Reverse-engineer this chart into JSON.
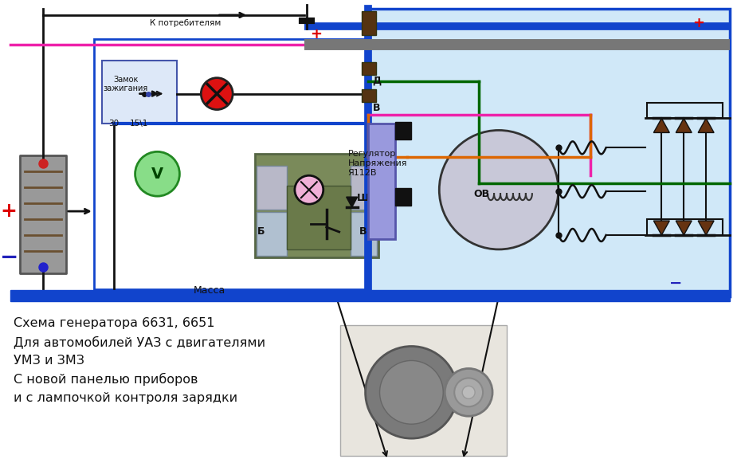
{
  "bg_color": "#ffffff",
  "light_blue": "#d0e8f8",
  "blue_border": "#1144cc",
  "diagram_text": "Схема генератора 6631, 6651\nДля автомобилей УАЗ с двигателями\nУМЗ и ЗМЗ\nС новой панелью приборов\nи с лампочкой контроля зарядки",
  "caption_top": "К потребителям",
  "caption_massa": "Масса",
  "caption_regulator": "Регулятор\nНапряжения\nЯ112В",
  "label_D": "Д",
  "label_B": "В",
  "label_B2": "В",
  "label_Sh": "Ш",
  "label_Б": "Б",
  "label_30": "30",
  "label_151": "15\\1",
  "label_OV": "ОВ",
  "label_zamok": "Замок\nзажигания",
  "plus_red": "#dd0000",
  "minus_blue": "#2222bb",
  "wire_blue": "#1144cc",
  "wire_green": "#006600",
  "wire_pink": "#ee22aa",
  "wire_orange": "#dd6600",
  "wire_black": "#111111",
  "wire_darkred": "#660000",
  "wire_gray": "#888888"
}
